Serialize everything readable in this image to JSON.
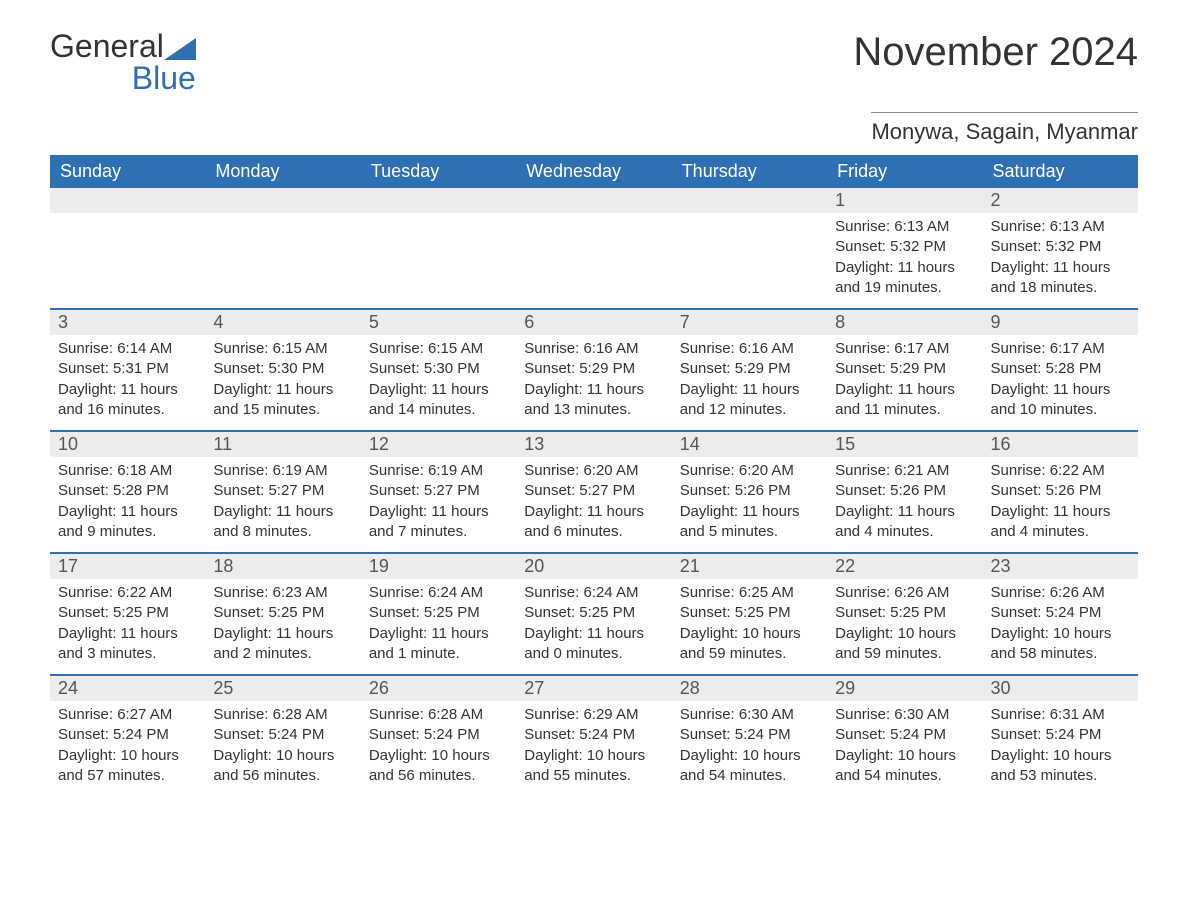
{
  "logo": {
    "text1": "General",
    "text2": "Blue",
    "icon_color": "#2f6fb3"
  },
  "title": "November 2024",
  "location": "Monywa, Sagain, Myanmar",
  "colors": {
    "header_bg": "#2f6fb3",
    "header_text": "#ffffff",
    "daynum_bg": "#ececec",
    "daynum_text": "#555555",
    "body_text": "#333333",
    "row_divider": "#2f6fb3",
    "page_bg": "#ffffff"
  },
  "layout": {
    "columns": 7,
    "rows": 5,
    "first_weekday_index": 5
  },
  "weekdays": [
    "Sunday",
    "Monday",
    "Tuesday",
    "Wednesday",
    "Thursday",
    "Friday",
    "Saturday"
  ],
  "days": [
    {
      "n": 1,
      "sunrise": "6:13 AM",
      "sunset": "5:32 PM",
      "daylight": "11 hours and 19 minutes."
    },
    {
      "n": 2,
      "sunrise": "6:13 AM",
      "sunset": "5:32 PM",
      "daylight": "11 hours and 18 minutes."
    },
    {
      "n": 3,
      "sunrise": "6:14 AM",
      "sunset": "5:31 PM",
      "daylight": "11 hours and 16 minutes."
    },
    {
      "n": 4,
      "sunrise": "6:15 AM",
      "sunset": "5:30 PM",
      "daylight": "11 hours and 15 minutes."
    },
    {
      "n": 5,
      "sunrise": "6:15 AM",
      "sunset": "5:30 PM",
      "daylight": "11 hours and 14 minutes."
    },
    {
      "n": 6,
      "sunrise": "6:16 AM",
      "sunset": "5:29 PM",
      "daylight": "11 hours and 13 minutes."
    },
    {
      "n": 7,
      "sunrise": "6:16 AM",
      "sunset": "5:29 PM",
      "daylight": "11 hours and 12 minutes."
    },
    {
      "n": 8,
      "sunrise": "6:17 AM",
      "sunset": "5:29 PM",
      "daylight": "11 hours and 11 minutes."
    },
    {
      "n": 9,
      "sunrise": "6:17 AM",
      "sunset": "5:28 PM",
      "daylight": "11 hours and 10 minutes."
    },
    {
      "n": 10,
      "sunrise": "6:18 AM",
      "sunset": "5:28 PM",
      "daylight": "11 hours and 9 minutes."
    },
    {
      "n": 11,
      "sunrise": "6:19 AM",
      "sunset": "5:27 PM",
      "daylight": "11 hours and 8 minutes."
    },
    {
      "n": 12,
      "sunrise": "6:19 AM",
      "sunset": "5:27 PM",
      "daylight": "11 hours and 7 minutes."
    },
    {
      "n": 13,
      "sunrise": "6:20 AM",
      "sunset": "5:27 PM",
      "daylight": "11 hours and 6 minutes."
    },
    {
      "n": 14,
      "sunrise": "6:20 AM",
      "sunset": "5:26 PM",
      "daylight": "11 hours and 5 minutes."
    },
    {
      "n": 15,
      "sunrise": "6:21 AM",
      "sunset": "5:26 PM",
      "daylight": "11 hours and 4 minutes."
    },
    {
      "n": 16,
      "sunrise": "6:22 AM",
      "sunset": "5:26 PM",
      "daylight": "11 hours and 4 minutes."
    },
    {
      "n": 17,
      "sunrise": "6:22 AM",
      "sunset": "5:25 PM",
      "daylight": "11 hours and 3 minutes."
    },
    {
      "n": 18,
      "sunrise": "6:23 AM",
      "sunset": "5:25 PM",
      "daylight": "11 hours and 2 minutes."
    },
    {
      "n": 19,
      "sunrise": "6:24 AM",
      "sunset": "5:25 PM",
      "daylight": "11 hours and 1 minute."
    },
    {
      "n": 20,
      "sunrise": "6:24 AM",
      "sunset": "5:25 PM",
      "daylight": "11 hours and 0 minutes."
    },
    {
      "n": 21,
      "sunrise": "6:25 AM",
      "sunset": "5:25 PM",
      "daylight": "10 hours and 59 minutes."
    },
    {
      "n": 22,
      "sunrise": "6:26 AM",
      "sunset": "5:25 PM",
      "daylight": "10 hours and 59 minutes."
    },
    {
      "n": 23,
      "sunrise": "6:26 AM",
      "sunset": "5:24 PM",
      "daylight": "10 hours and 58 minutes."
    },
    {
      "n": 24,
      "sunrise": "6:27 AM",
      "sunset": "5:24 PM",
      "daylight": "10 hours and 57 minutes."
    },
    {
      "n": 25,
      "sunrise": "6:28 AM",
      "sunset": "5:24 PM",
      "daylight": "10 hours and 56 minutes."
    },
    {
      "n": 26,
      "sunrise": "6:28 AM",
      "sunset": "5:24 PM",
      "daylight": "10 hours and 56 minutes."
    },
    {
      "n": 27,
      "sunrise": "6:29 AM",
      "sunset": "5:24 PM",
      "daylight": "10 hours and 55 minutes."
    },
    {
      "n": 28,
      "sunrise": "6:30 AM",
      "sunset": "5:24 PM",
      "daylight": "10 hours and 54 minutes."
    },
    {
      "n": 29,
      "sunrise": "6:30 AM",
      "sunset": "5:24 PM",
      "daylight": "10 hours and 54 minutes."
    },
    {
      "n": 30,
      "sunrise": "6:31 AM",
      "sunset": "5:24 PM",
      "daylight": "10 hours and 53 minutes."
    }
  ],
  "labels": {
    "sunrise": "Sunrise: ",
    "sunset": "Sunset: ",
    "daylight": "Daylight: "
  }
}
